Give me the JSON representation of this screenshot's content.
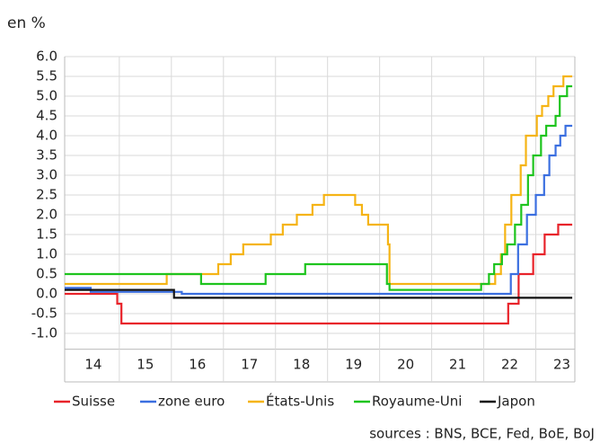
{
  "chart_data": {
    "type": "line",
    "subtitle": "en %",
    "source": "sources : BNS, BCE, Fed, BoE, BoJ",
    "xlim": [
      2013.95,
      2023.75
    ],
    "xticks": [
      {
        "value": 2014.5,
        "label": "14"
      },
      {
        "value": 2015.5,
        "label": "15"
      },
      {
        "value": 2016.5,
        "label": "16"
      },
      {
        "value": 2017.5,
        "label": "17"
      },
      {
        "value": 2018.5,
        "label": "18"
      },
      {
        "value": 2019.5,
        "label": "19"
      },
      {
        "value": 2020.5,
        "label": "20"
      },
      {
        "value": 2021.5,
        "label": "21"
      },
      {
        "value": 2022.5,
        "label": "22"
      },
      {
        "value": 2023.5,
        "label": "23"
      }
    ],
    "ylim": [
      -1.4,
      6.0
    ],
    "yticks": [
      {
        "value": 6,
        "label": "6.0"
      },
      5.5,
      {
        "value": 5,
        "label": "5.0"
      },
      4.5,
      {
        "value": 4,
        "label": "4.0"
      },
      3.5,
      {
        "value": 3,
        "label": "3.0"
      },
      2.5,
      {
        "value": 2,
        "label": "2.0"
      },
      1.5,
      {
        "value": 1,
        "label": "1.0"
      },
      0.5,
      {
        "value": 0,
        "label": "0.0"
      },
      -0.5,
      {
        "value": -1,
        "label": "-1.0"
      }
    ],
    "grid": true,
    "step": true,
    "series": [
      {
        "name": "Suisse",
        "color": "#e8232a",
        "x": [
          2013.95,
          2014.96,
          2015.04,
          2022.47,
          2022.67,
          2022.95,
          2023.17,
          2023.43,
          2023.7
        ],
        "values": [
          0.0,
          -0.25,
          -0.75,
          -0.25,
          0.5,
          1.0,
          1.5,
          1.75,
          1.75
        ]
      },
      {
        "name": "zone euro",
        "color": "#3b6fe0",
        "x": [
          2013.95,
          2014.45,
          2016.2,
          2022.52,
          2022.66,
          2022.83,
          2023.0,
          2023.16,
          2023.26,
          2023.38,
          2023.47,
          2023.57,
          2023.7
        ],
        "values": [
          0.15,
          0.05,
          0.0,
          0.5,
          1.25,
          2.0,
          2.5,
          3.0,
          3.5,
          3.75,
          4.0,
          4.25,
          4.25
        ]
      },
      {
        "name": "États-Unis",
        "color": "#f5b415",
        "x": [
          2013.95,
          2015.91,
          2016.9,
          2017.14,
          2017.38,
          2017.91,
          2018.14,
          2018.41,
          2018.71,
          2018.93,
          2019.53,
          2019.66,
          2019.78,
          2020.16,
          2020.19,
          2022.22,
          2022.33,
          2022.41,
          2022.53,
          2022.71,
          2022.81,
          2023.02,
          2023.12,
          2023.24,
          2023.34,
          2023.53,
          2023.7
        ],
        "values": [
          0.25,
          0.5,
          0.75,
          1.0,
          1.25,
          1.5,
          1.75,
          2.0,
          2.25,
          2.5,
          2.25,
          2.0,
          1.75,
          1.25,
          0.25,
          0.5,
          1.0,
          1.75,
          2.5,
          3.25,
          4.0,
          4.5,
          4.75,
          5.0,
          5.25,
          5.5,
          5.5
        ]
      },
      {
        "name": "Royaume-Uni",
        "color": "#1ec41e",
        "x": [
          2013.95,
          2016.57,
          2017.81,
          2018.57,
          2020.14,
          2020.19,
          2021.95,
          2022.1,
          2022.2,
          2022.35,
          2022.45,
          2022.6,
          2022.72,
          2022.85,
          2022.95,
          2023.1,
          2023.2,
          2023.38,
          2023.46,
          2023.6,
          2023.7
        ],
        "values": [
          0.5,
          0.25,
          0.5,
          0.75,
          0.25,
          0.1,
          0.25,
          0.5,
          0.75,
          1.0,
          1.25,
          1.75,
          2.25,
          3.0,
          3.5,
          4.0,
          4.25,
          4.5,
          5.0,
          5.25,
          5.25
        ]
      },
      {
        "name": "Japon",
        "color": "#111111",
        "x": [
          2013.95,
          2016.05,
          2023.7
        ],
        "values": [
          0.1,
          -0.1,
          -0.1
        ]
      }
    ]
  }
}
